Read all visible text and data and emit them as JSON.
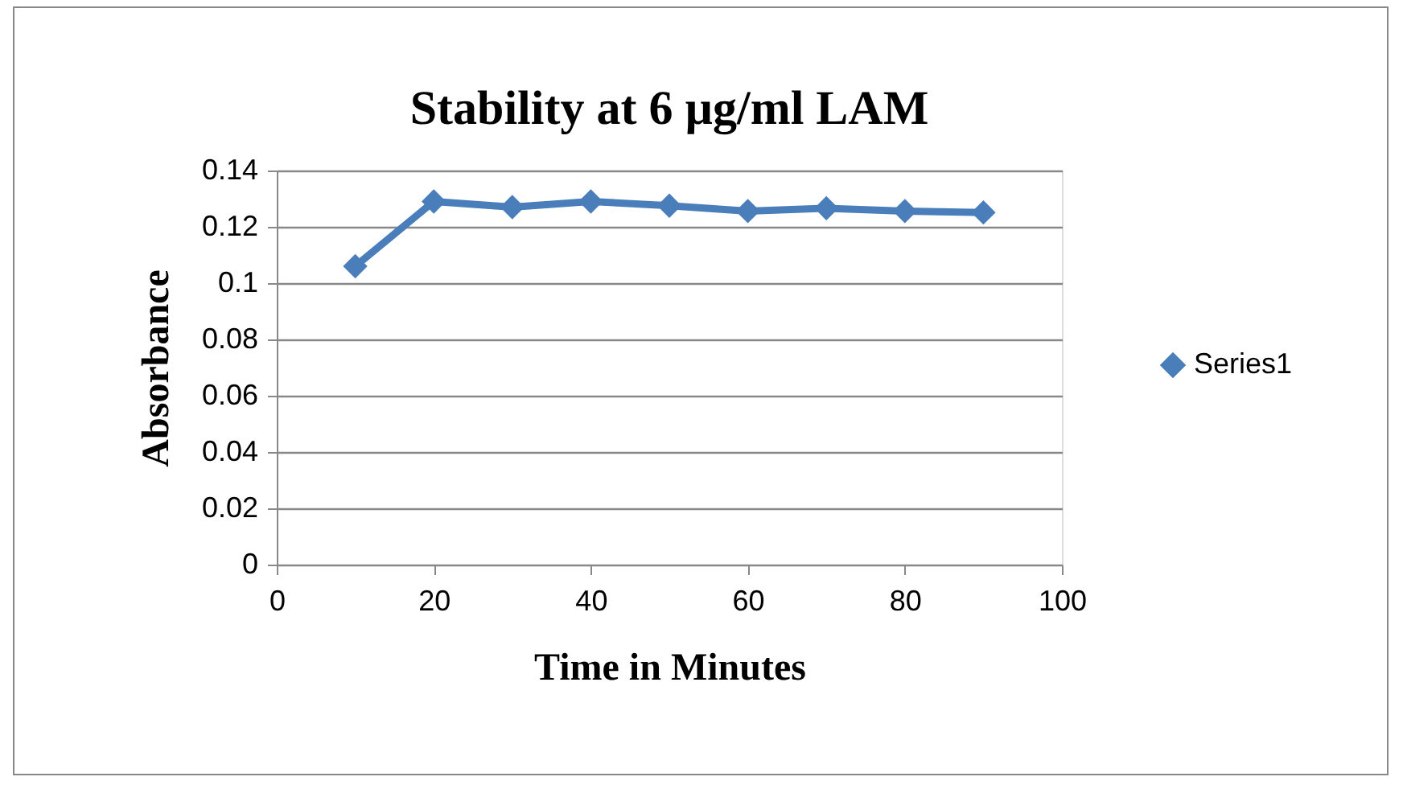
{
  "chart_data": {
    "type": "line",
    "title": "Stability at 6 µg/ml LAM",
    "xlabel": "Time in Minutes",
    "ylabel": "Absorbance",
    "x": [
      10,
      20,
      30,
      40,
      50,
      60,
      70,
      80,
      90
    ],
    "series": [
      {
        "name": "Series1",
        "color": "#4a7ebb",
        "values": [
          0.106,
          0.129,
          0.127,
          0.129,
          0.1275,
          0.1256,
          0.1266,
          0.1256,
          0.1251
        ]
      }
    ],
    "xlim": [
      0,
      100
    ],
    "xticks": [
      0,
      20,
      40,
      60,
      80,
      100
    ],
    "ylim": [
      0,
      0.14
    ],
    "yticks": [
      0,
      0.02,
      0.04,
      0.06,
      0.08,
      0.1,
      0.12,
      0.14
    ],
    "grid": "y",
    "legend": "right",
    "marker": "diamond",
    "line_style": "solid"
  }
}
